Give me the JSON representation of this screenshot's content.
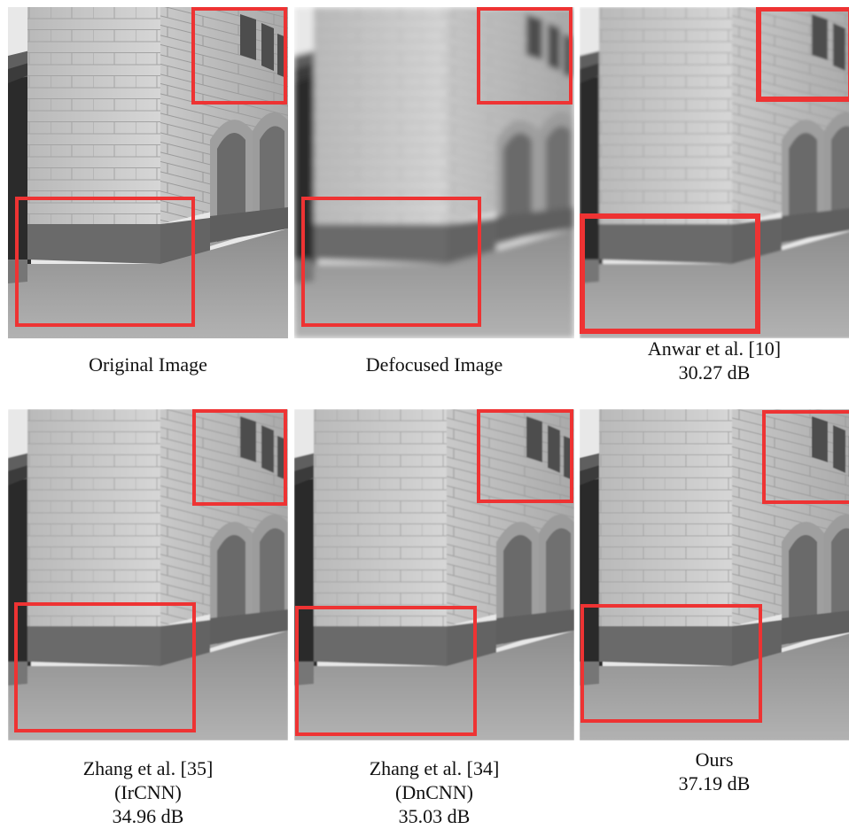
{
  "figure": {
    "panels": [
      {
        "id": "original",
        "caption_lines": [
          "Original  Image"
        ]
      },
      {
        "id": "defocused",
        "caption_lines": [
          "Defocused Image"
        ]
      },
      {
        "id": "anwar",
        "caption_lines": [
          "Anwar et al. [10]",
          "30.27 dB"
        ]
      },
      {
        "id": "ircnn",
        "caption_lines": [
          "Zhang et al. [35]",
          "(IrCNN)",
          "34.96 dB"
        ]
      },
      {
        "id": "dncnn",
        "caption_lines": [
          "Zhang et al. [34]",
          "(DnCNN)",
          "35.03 dB"
        ]
      },
      {
        "id": "ours",
        "caption_lines": [
          "Ours",
          "37.19 dB"
        ]
      }
    ],
    "highlight_color": "#ee3333"
  }
}
